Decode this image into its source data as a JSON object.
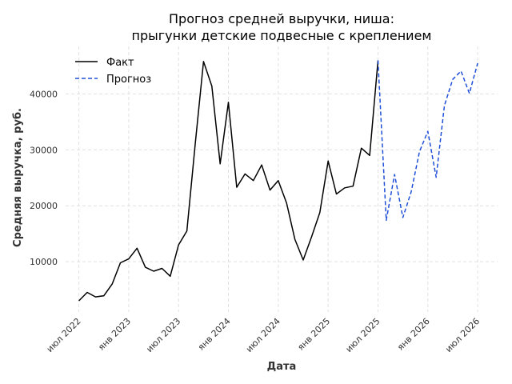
{
  "chart_data": {
    "type": "line",
    "title_lines": [
      "Прогноз средней выручки, ниша:",
      "прыгунки детские подвесные с креплением"
    ],
    "xlabel": "Дата",
    "ylabel": "Средняя выручка, руб.",
    "x_tick_labels": [
      "июл 2022",
      "янв 2023",
      "июл 2023",
      "янв 2024",
      "июл 2024",
      "янв 2025",
      "июл 2025",
      "янв 2026",
      "июл 2026"
    ],
    "x_tick_months": [
      0,
      6,
      12,
      18,
      24,
      30,
      36,
      42,
      48
    ],
    "y_ticks": [
      10000,
      20000,
      30000,
      40000
    ],
    "y_tick_labels": [
      "10000",
      "20000",
      "30000",
      "40000"
    ],
    "xlim": [
      -1.6,
      50.4
    ],
    "ylim": [
      1000,
      48500
    ],
    "legend_position": "top-left",
    "grid": true,
    "series": [
      {
        "name": "Факт",
        "color": "#000000",
        "dash": "solid",
        "x": [
          0,
          1,
          2,
          3,
          4,
          5,
          6,
          7,
          8,
          9,
          10,
          11,
          12,
          13,
          14,
          15,
          16,
          17,
          18,
          19,
          20,
          21,
          22,
          23,
          24,
          25,
          26,
          27,
          28,
          29,
          30,
          31,
          32,
          33,
          34,
          35,
          36
        ],
        "values": [
          3000,
          4500,
          3700,
          3900,
          6000,
          9800,
          10500,
          12400,
          9000,
          8300,
          8800,
          7400,
          13000,
          15500,
          31000,
          45800,
          41400,
          27500,
          38500,
          23300,
          25700,
          24500,
          27300,
          22800,
          24500,
          20500,
          14000,
          10300,
          14400,
          18800,
          28000,
          22100,
          23200,
          23500,
          30300,
          29000,
          46000
        ]
      },
      {
        "name": "Прогноз",
        "color": "#1f4fd8",
        "dash": "dashed",
        "x": [
          36,
          37,
          38,
          39,
          40,
          41,
          42,
          43,
          44,
          45,
          46,
          47,
          48
        ],
        "values": [
          46000,
          17400,
          25600,
          17900,
          22500,
          29700,
          33300,
          25100,
          37900,
          42600,
          44100,
          40100,
          45500
        ]
      }
    ]
  }
}
